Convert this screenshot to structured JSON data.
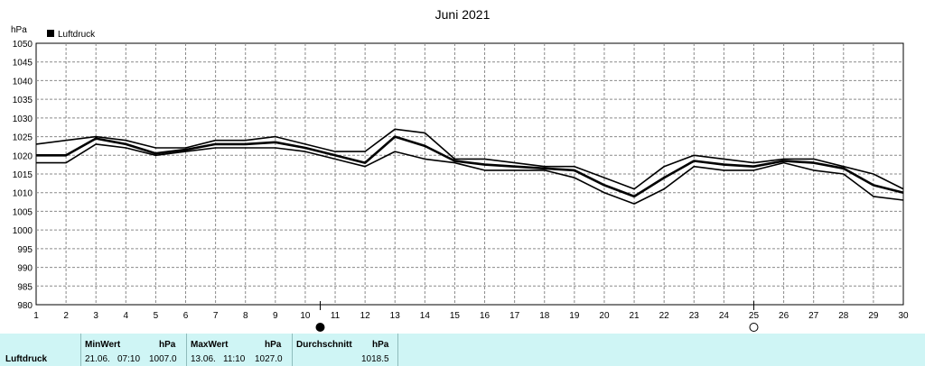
{
  "chart_data": {
    "type": "line",
    "title": "Juni 2021",
    "ylabel": "hPa",
    "legend": {
      "label": "Luftdruck",
      "placement": "top-left"
    },
    "x": [
      1,
      2,
      3,
      4,
      5,
      6,
      7,
      8,
      9,
      10,
      11,
      12,
      13,
      14,
      15,
      16,
      17,
      18,
      19,
      20,
      21,
      22,
      23,
      24,
      25,
      26,
      27,
      28,
      29,
      30
    ],
    "xlim": [
      1,
      30
    ],
    "ylim": [
      980,
      1050
    ],
    "yticks": [
      980,
      985,
      990,
      995,
      1000,
      1005,
      1010,
      1015,
      1020,
      1025,
      1030,
      1035,
      1040,
      1045,
      1050
    ],
    "grid": true,
    "series": [
      {
        "values": [
          1023,
          1024,
          1025,
          1024,
          1022,
          1022,
          1024,
          1024,
          1025,
          1023,
          1021,
          1021,
          1027,
          1026,
          1019,
          1019,
          1018,
          1017,
          1017,
          1014,
          1011,
          1017,
          1020,
          1019,
          1018,
          1019,
          1019,
          1017,
          1015,
          1011
        ]
      },
      {
        "values": [
          1018,
          1018,
          1023,
          1022,
          1020,
          1021,
          1022,
          1022,
          1022,
          1021,
          1019,
          1017,
          1021,
          1019,
          1018,
          1016,
          1016,
          1016,
          1014,
          1010,
          1007,
          1011,
          1017,
          1016,
          1016,
          1018,
          1016,
          1015,
          1009,
          1008
        ]
      },
      {
        "values": [
          1020,
          1020,
          1024.5,
          1023,
          1020.5,
          1021.5,
          1023,
          1023,
          1023.5,
          1022,
          1020,
          1018,
          1025,
          1022.5,
          1018.5,
          1017.5,
          1017,
          1016.5,
          1016,
          1012,
          1009,
          1014,
          1018.5,
          1017.5,
          1017,
          1018.5,
          1018,
          1016.5,
          1012,
          1010
        ]
      }
    ],
    "markers": [
      {
        "x": 10.5,
        "symbol": "new-moon-icon",
        "color": "#000000"
      },
      {
        "x": 25,
        "symbol": "full-moon-icon",
        "color": "#000000"
      }
    ]
  },
  "footer": {
    "row_label": "Luftdruck",
    "min": {
      "label": "MinWert",
      "unit": "hPa",
      "date": "21.06.",
      "time": "07:10",
      "value": "1007.0"
    },
    "max": {
      "label": "MaxWert",
      "unit": "hPa",
      "date": "13.06.",
      "time": "11:10",
      "value": "1027.0"
    },
    "avg": {
      "label": "Durchschnitt",
      "unit": "hPa",
      "value": "1018.5"
    }
  }
}
